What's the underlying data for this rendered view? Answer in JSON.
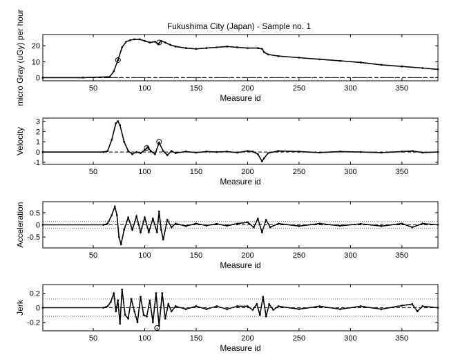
{
  "figure": {
    "title": "Fukushima City (Japan) - Sample no. 1"
  },
  "chart_data": [
    {
      "type": "line",
      "title": "Fukushima City (Japan) - Sample no. 1",
      "xlabel": "Measure id",
      "ylabel": "micro Gray (uGy) per hour",
      "xlim": [
        1,
        385
      ],
      "ylim": [
        -2,
        27
      ],
      "xticks": [
        50,
        100,
        150,
        200,
        250,
        300,
        350
      ],
      "yticks": [
        0,
        10,
        20
      ],
      "series": [
        {
          "x": [
            1,
            40,
            66,
            70,
            74,
            78,
            82,
            86,
            90,
            95,
            100,
            105,
            110,
            113,
            116,
            120,
            125,
            130,
            140,
            150,
            160,
            170,
            180,
            190,
            200,
            210,
            214,
            216,
            220,
            230,
            250,
            270,
            290,
            310,
            330,
            350,
            370,
            385
          ],
          "y": [
            0,
            0,
            0.5,
            4,
            11,
            19,
            22.5,
            23.5,
            24,
            24,
            23,
            22,
            22.5,
            21,
            23,
            22,
            20.5,
            19.5,
            18.5,
            18,
            18.5,
            19,
            19.5,
            19,
            18.5,
            18.5,
            18,
            16,
            14.5,
            13.5,
            12.5,
            11.5,
            10.5,
            9.5,
            8,
            7,
            6,
            5.2
          ]
        },
        {
          "x": [
            1,
            385
          ],
          "y": [
            0,
            0
          ]
        }
      ],
      "markers": [
        {
          "x": 74,
          "y": 11
        },
        {
          "x": 114,
          "y": 22
        }
      ]
    },
    {
      "type": "line",
      "xlabel": "Measure id",
      "ylabel": "Velocity",
      "xlim": [
        1,
        385
      ],
      "ylim": [
        -1.2,
        3.3
      ],
      "xticks": [
        50,
        100,
        150,
        200,
        250,
        300,
        350
      ],
      "yticks": [
        -1,
        0,
        1,
        2,
        3
      ],
      "series": [
        {
          "x": [
            1,
            60,
            64,
            68,
            72,
            74,
            76,
            80,
            84,
            88,
            92,
            96,
            100,
            103,
            106,
            110,
            114,
            118,
            122,
            126,
            130,
            140,
            150,
            160,
            170,
            180,
            190,
            200,
            205,
            210,
            214,
            216,
            220,
            230,
            250,
            270,
            290,
            310,
            330,
            350,
            360,
            370,
            385
          ],
          "y": [
            0,
            0,
            0.1,
            1.2,
            2.8,
            3.0,
            2.6,
            1.0,
            0.1,
            -0.2,
            0.0,
            -0.1,
            0.2,
            0.45,
            0.1,
            -0.2,
            0.9,
            0.1,
            -0.3,
            0.1,
            -0.1,
            0.05,
            -0.05,
            0.05,
            0.0,
            0.05,
            -0.05,
            0.1,
            0.05,
            -0.2,
            -0.9,
            -0.6,
            -0.1,
            0.1,
            0.05,
            -0.05,
            0.05,
            0.0,
            -0.05,
            0.05,
            0.1,
            -0.05,
            0.0
          ]
        }
      ],
      "markers": [
        {
          "x": 102,
          "y": 0.4
        },
        {
          "x": 114,
          "y": 1.0
        }
      ]
    },
    {
      "type": "line",
      "xlabel": "Measure id",
      "ylabel": "Acceleration",
      "xlim": [
        1,
        385
      ],
      "ylim": [
        -0.95,
        0.95
      ],
      "xticks": [
        50,
        100,
        150,
        200,
        250,
        300,
        350
      ],
      "yticks": [
        -0.5,
        0,
        0.5
      ],
      "series": [
        {
          "x": [
            1,
            60,
            64,
            68,
            71,
            73,
            75,
            77,
            80,
            84,
            88,
            92,
            96,
            100,
            104,
            108,
            112,
            114,
            116,
            118,
            122,
            126,
            130,
            140,
            150,
            160,
            170,
            180,
            190,
            200,
            206,
            210,
            214,
            218,
            222,
            230,
            250,
            270,
            290,
            310,
            330,
            350,
            360,
            370,
            385
          ],
          "y": [
            0,
            0,
            0.05,
            0.4,
            0.75,
            0.4,
            -0.5,
            -0.8,
            -0.2,
            0.3,
            -0.2,
            0.35,
            -0.3,
            0.3,
            -0.3,
            0.25,
            -0.3,
            0.55,
            -0.2,
            -0.6,
            0.2,
            -0.1,
            0.05,
            -0.05,
            0.05,
            -0.03,
            0.04,
            -0.04,
            0.05,
            0.1,
            -0.1,
            0.25,
            -0.3,
            0.2,
            -0.1,
            0.05,
            -0.05,
            0.05,
            -0.04,
            0.04,
            -0.05,
            0.05,
            -0.1,
            0.05,
            0.0
          ]
        }
      ],
      "band": 0.15
    },
    {
      "type": "line",
      "xlabel": "Measure id",
      "ylabel": "Jerk",
      "xlim": [
        1,
        385
      ],
      "ylim": [
        -0.32,
        0.32
      ],
      "xticks": [
        50,
        100,
        150,
        200,
        250,
        300,
        350
      ],
      "yticks": [
        -0.2,
        0,
        0.2
      ],
      "series": [
        {
          "x": [
            1,
            60,
            64,
            67,
            70,
            72,
            74,
            76,
            78,
            81,
            84,
            87,
            90,
            93,
            96,
            99,
            102,
            105,
            108,
            111,
            114,
            117,
            120,
            123,
            126,
            130,
            140,
            150,
            160,
            170,
            180,
            190,
            200,
            205,
            209,
            212,
            215,
            218,
            221,
            225,
            230,
            250,
            270,
            290,
            310,
            330,
            350,
            360,
            365,
            370,
            385
          ],
          "y": [
            0,
            0,
            0.02,
            0.08,
            0.2,
            -0.05,
            0.1,
            -0.22,
            0.25,
            -0.1,
            -0.15,
            0.12,
            -0.05,
            -0.2,
            0.15,
            -0.1,
            -0.12,
            0.1,
            -0.2,
            0.2,
            -0.25,
            0.2,
            -0.15,
            0.05,
            -0.05,
            0.02,
            -0.02,
            0.02,
            -0.02,
            0.02,
            -0.02,
            0.02,
            0.02,
            -0.03,
            0.05,
            -0.1,
            0.15,
            -0.12,
            0.05,
            -0.03,
            0.02,
            -0.02,
            0.02,
            -0.02,
            0.02,
            -0.02,
            0.03,
            0.05,
            -0.05,
            0.02,
            0.0
          ]
        }
      ],
      "markers": [
        {
          "x": 112,
          "y": -0.28
        }
      ],
      "band": 0.12
    }
  ]
}
